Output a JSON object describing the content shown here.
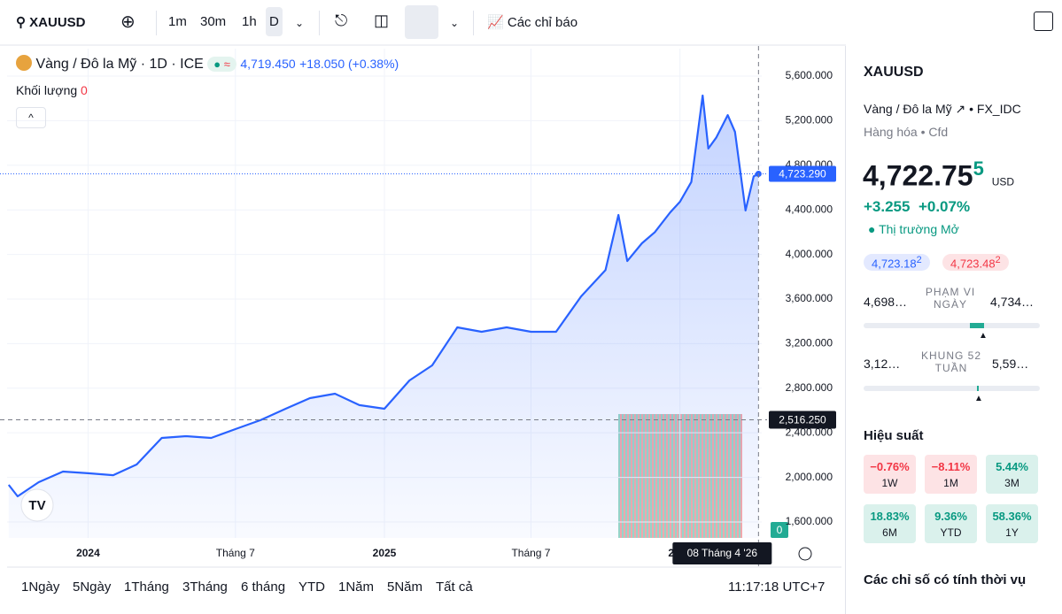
{
  "toolbar": {
    "symbol": "XAUUSD",
    "intervals": [
      "1m",
      "30m",
      "1h",
      "D"
    ],
    "indicators": "Các chỉ báo"
  },
  "legend": {
    "title": "Vàng / Đô la Mỹ · 1D · ICE",
    "price": "4,719.450",
    "change": "+18.050 (+0.38%)",
    "volume_label": "Khối lượng",
    "volume_value": "0",
    "volume_axis_label": "0"
  },
  "chart_data": {
    "type": "line",
    "series": [
      {
        "name": "Vàng / Đô la Mỹ · 1D · ICE",
        "color": "#2962ff",
        "x": [
          "2023-09-25",
          "2023-10-06",
          "2023-11-01",
          "2023-12-01",
          "2024-01-01",
          "2024-02-01",
          "2024-03-01",
          "2024-04-01",
          "2024-05-01",
          "2024-06-01",
          "2024-07-01",
          "2024-08-01",
          "2024-09-01",
          "2024-10-01",
          "2024-11-01",
          "2024-12-01",
          "2025-01-01",
          "2025-02-01",
          "2025-03-01",
          "2025-04-01",
          "2025-05-01",
          "2025-06-01",
          "2025-07-01",
          "2025-08-01",
          "2025-09-01",
          "2025-10-01",
          "2025-10-17",
          "2025-10-28",
          "2025-11-15",
          "2025-12-01",
          "2025-12-20",
          "2026-01-01",
          "2026-01-15",
          "2026-01-29",
          "2026-02-05",
          "2026-02-15",
          "2026-03-01",
          "2026-03-10",
          "2026-03-23",
          "2026-04-02",
          "2026-04-08"
        ],
        "values": [
          1933,
          1830,
          1957,
          2052,
          2037,
          2020,
          2116,
          2354,
          2370,
          2354,
          2433,
          2513,
          2616,
          2711,
          2751,
          2648,
          2616,
          2870,
          3005,
          3346,
          3306,
          3346,
          3306,
          3306,
          3624,
          3860,
          4354,
          3940,
          4100,
          4200,
          4378,
          4473,
          4650,
          5425,
          4950,
          5050,
          5250,
          5100,
          4394,
          4700,
          4723
        ]
      }
    ],
    "xlim": [
      "2023-09-23",
      "2026-04-12"
    ],
    "xticks": [
      {
        "value": "2024-01-01",
        "label": "2024"
      },
      {
        "value": "2024-07-01",
        "label": "Tháng 7"
      },
      {
        "value": "2025-01-01",
        "label": "2025"
      },
      {
        "value": "2025-07-01",
        "label": "Tháng 7"
      },
      {
        "value": "2026-01-01",
        "label": "2026"
      }
    ],
    "ylim": [
      1457,
      5846
    ],
    "yticks": [
      {
        "value": 1600,
        "label": "1,600.000"
      },
      {
        "value": 2000,
        "label": "2,000.000"
      },
      {
        "value": 2400,
        "label": "2,400.000"
      },
      {
        "value": 2800,
        "label": "2,800.000"
      },
      {
        "value": 3200,
        "label": "3,200.000"
      },
      {
        "value": 3600,
        "label": "3,600.000"
      },
      {
        "value": 4000,
        "label": "4,000.000"
      },
      {
        "value": 4400,
        "label": "4,400.000"
      },
      {
        "value": 4800,
        "label": "4,800.000"
      },
      {
        "value": 5200,
        "label": "5,200.000"
      },
      {
        "value": 5600,
        "label": "5,600.000"
      }
    ],
    "grid": true,
    "last_price": {
      "value": 4723.29,
      "label": "4,723.290"
    },
    "crosshair": {
      "price": 2516.25,
      "price_label": "2,516.250",
      "date": "2026-04-08",
      "date_label": "08 Tháng 4 '26"
    }
  },
  "ranges": [
    "1Ngày",
    "5Ngày",
    "1Tháng",
    "3Tháng",
    "6 tháng",
    "YTD",
    "1Năm",
    "5Năm",
    "Tất cả"
  ],
  "clock": "11:17:18 UTC+7",
  "sidebar": {
    "symbol": "XAUUSD",
    "description": "Vàng / Đô la Mỹ",
    "exchange": "FX_IDC",
    "category": "Hàng hóa",
    "kind": "Cfd",
    "price": "4,722.75",
    "price_sup": "5",
    "currency": "USD",
    "change": "+3.255",
    "change_pct": "+0.07%",
    "status": "Thị trường Mở",
    "bid": "4,723.18",
    "bid_sup": "2",
    "ask": "4,723.48",
    "ask_sup": "2",
    "day_range": {
      "low": "4,698…",
      "label": "PHẠM VI NGÀY",
      "high": "4,734…"
    },
    "week52": {
      "low": "3,12…",
      "label": "KHUNG 52 TUẦN",
      "high": "5,59…"
    },
    "performance_title": "Hiệu suất",
    "performance": [
      {
        "value": "−0.76%",
        "label": "1W"
      },
      {
        "value": "−8.11%",
        "label": "1M"
      },
      {
        "value": "5.44%",
        "label": "3M"
      },
      {
        "value": "18.83%",
        "label": "6M"
      },
      {
        "value": "9.36%",
        "label": "YTD"
      },
      {
        "value": "58.36%",
        "label": "1Y"
      }
    ],
    "seasonal_title": "Các chỉ số có tính thời vụ"
  }
}
